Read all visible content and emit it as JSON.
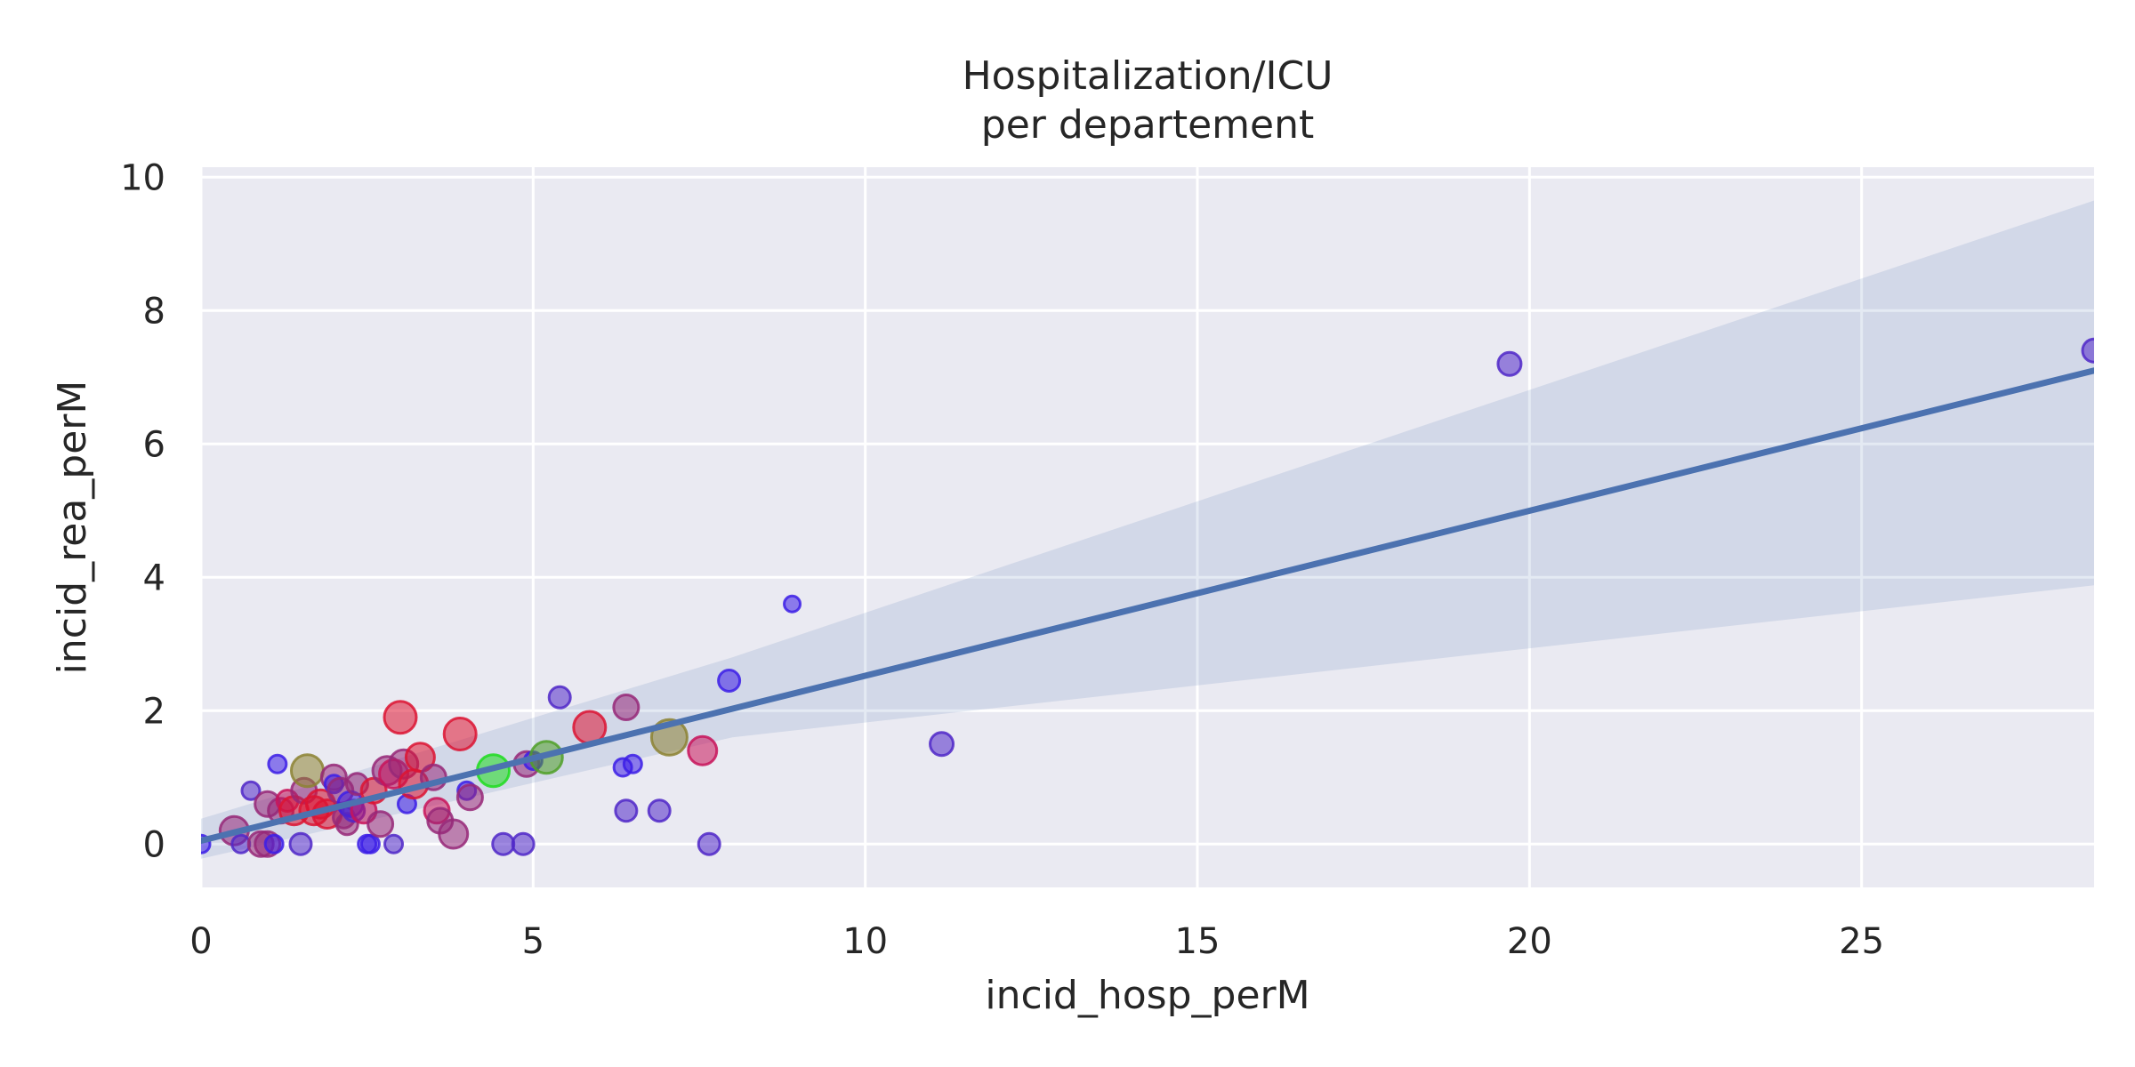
{
  "chart_data": {
    "type": "scatter",
    "title_lines": [
      "Hospitalization/ICU",
      "per departement"
    ],
    "xlabel": "incid_hosp_perM",
    "ylabel": "incid_rea_perM",
    "xlim": [
      0,
      28.5
    ],
    "ylim": [
      -0.65,
      10.15
    ],
    "xticks": [
      0,
      5,
      10,
      15,
      20,
      25
    ],
    "yticks": [
      0,
      2,
      4,
      6,
      8,
      10
    ],
    "grid": true,
    "legend": "none",
    "background_color": "#eaeaf2",
    "grid_color": "#ffffff",
    "regression": {
      "x": [
        0,
        28.5
      ],
      "y": [
        0.05,
        7.1
      ],
      "color": "#4c72b0",
      "ci_upper": [
        [
          0,
          0.38
        ],
        [
          8,
          2.8
        ],
        [
          28.5,
          9.65
        ]
      ],
      "ci_lower": [
        [
          0,
          -0.22
        ],
        [
          8,
          1.6
        ],
        [
          28.5,
          3.88
        ]
      ],
      "ci_color": "#4c72b0"
    },
    "points": [
      {
        "x": 0.0,
        "y": 0.0,
        "size": 10,
        "color": "#3c1ee6"
      },
      {
        "x": 0.5,
        "y": 0.2,
        "size": 16,
        "color": "#962878"
      },
      {
        "x": 0.6,
        "y": 0.0,
        "size": 10,
        "color": "#5028c8"
      },
      {
        "x": 0.75,
        "y": 0.8,
        "size": 10,
        "color": "#5028c8"
      },
      {
        "x": 0.9,
        "y": 0.0,
        "size": 14,
        "color": "#962878"
      },
      {
        "x": 1.0,
        "y": 0.0,
        "size": 14,
        "color": "#962878"
      },
      {
        "x": 1.0,
        "y": 0.6,
        "size": 14,
        "color": "#962878"
      },
      {
        "x": 1.1,
        "y": 0.0,
        "size": 10,
        "color": "#3c1ee6"
      },
      {
        "x": 1.15,
        "y": 1.2,
        "size": 10,
        "color": "#3c1ee6"
      },
      {
        "x": 1.2,
        "y": 0.5,
        "size": 14,
        "color": "#962878"
      },
      {
        "x": 1.3,
        "y": 0.65,
        "size": 12,
        "color": "#c8145a"
      },
      {
        "x": 1.4,
        "y": 0.5,
        "size": 16,
        "color": "#dc1432"
      },
      {
        "x": 1.5,
        "y": 0.0,
        "size": 12,
        "color": "#5028c8"
      },
      {
        "x": 1.55,
        "y": 0.8,
        "size": 14,
        "color": "#962878"
      },
      {
        "x": 1.6,
        "y": 1.1,
        "size": 18,
        "color": "#8c8232"
      },
      {
        "x": 1.7,
        "y": 0.5,
        "size": 16,
        "color": "#dc1432"
      },
      {
        "x": 1.8,
        "y": 0.6,
        "size": 16,
        "color": "#dc1432"
      },
      {
        "x": 1.9,
        "y": 0.45,
        "size": 16,
        "color": "#dc1432"
      },
      {
        "x": 2.0,
        "y": 1.0,
        "size": 14,
        "color": "#962878"
      },
      {
        "x": 2.0,
        "y": 0.9,
        "size": 10,
        "color": "#3c1ee6"
      },
      {
        "x": 2.1,
        "y": 0.8,
        "size": 14,
        "color": "#962878"
      },
      {
        "x": 2.15,
        "y": 0.4,
        "size": 12,
        "color": "#962878"
      },
      {
        "x": 2.2,
        "y": 0.3,
        "size": 12,
        "color": "#962878"
      },
      {
        "x": 2.25,
        "y": 0.6,
        "size": 14,
        "color": "#3c1ee6"
      },
      {
        "x": 2.3,
        "y": 0.5,
        "size": 12,
        "color": "#5028c8"
      },
      {
        "x": 2.35,
        "y": 0.9,
        "size": 12,
        "color": "#962878"
      },
      {
        "x": 2.45,
        "y": 0.5,
        "size": 14,
        "color": "#c8145a"
      },
      {
        "x": 2.5,
        "y": 0.0,
        "size": 10,
        "color": "#3c1ee6"
      },
      {
        "x": 2.55,
        "y": 0.0,
        "size": 10,
        "color": "#3c1ee6"
      },
      {
        "x": 2.6,
        "y": 0.8,
        "size": 14,
        "color": "#dc1432"
      },
      {
        "x": 2.7,
        "y": 0.3,
        "size": 14,
        "color": "#962878"
      },
      {
        "x": 2.8,
        "y": 1.1,
        "size": 16,
        "color": "#962878"
      },
      {
        "x": 2.9,
        "y": 1.05,
        "size": 16,
        "color": "#c8145a"
      },
      {
        "x": 2.9,
        "y": 0.0,
        "size": 10,
        "color": "#5028c8"
      },
      {
        "x": 3.0,
        "y": 1.9,
        "size": 18,
        "color": "#dc1432"
      },
      {
        "x": 3.05,
        "y": 1.2,
        "size": 16,
        "color": "#962878"
      },
      {
        "x": 3.1,
        "y": 0.6,
        "size": 10,
        "color": "#3c1ee6"
      },
      {
        "x": 3.2,
        "y": 0.9,
        "size": 16,
        "color": "#dc1432"
      },
      {
        "x": 3.3,
        "y": 1.3,
        "size": 16,
        "color": "#dc1432"
      },
      {
        "x": 3.5,
        "y": 1.0,
        "size": 14,
        "color": "#962878"
      },
      {
        "x": 3.55,
        "y": 0.5,
        "size": 14,
        "color": "#c8145a"
      },
      {
        "x": 3.6,
        "y": 0.35,
        "size": 14,
        "color": "#962878"
      },
      {
        "x": 3.8,
        "y": 0.15,
        "size": 16,
        "color": "#962878"
      },
      {
        "x": 3.9,
        "y": 1.65,
        "size": 18,
        "color": "#dc1432"
      },
      {
        "x": 4.0,
        "y": 0.8,
        "size": 10,
        "color": "#3c1ee6"
      },
      {
        "x": 4.05,
        "y": 0.7,
        "size": 14,
        "color": "#962878"
      },
      {
        "x": 4.4,
        "y": 1.1,
        "size": 18,
        "color": "#1edc1e"
      },
      {
        "x": 4.55,
        "y": 0.0,
        "size": 12,
        "color": "#5028c8"
      },
      {
        "x": 4.85,
        "y": 0.0,
        "size": 12,
        "color": "#5028c8"
      },
      {
        "x": 4.9,
        "y": 1.2,
        "size": 14,
        "color": "#962878"
      },
      {
        "x": 5.0,
        "y": 1.25,
        "size": 10,
        "color": "#3c1ee6"
      },
      {
        "x": 5.2,
        "y": 1.3,
        "size": 18,
        "color": "#50a028"
      },
      {
        "x": 5.4,
        "y": 2.2,
        "size": 12,
        "color": "#5028c8"
      },
      {
        "x": 5.85,
        "y": 1.75,
        "size": 18,
        "color": "#dc1432"
      },
      {
        "x": 6.35,
        "y": 1.15,
        "size": 10,
        "color": "#3c1ee6"
      },
      {
        "x": 6.4,
        "y": 0.5,
        "size": 12,
        "color": "#5028c8"
      },
      {
        "x": 6.4,
        "y": 2.05,
        "size": 14,
        "color": "#962878"
      },
      {
        "x": 6.5,
        "y": 1.2,
        "size": 10,
        "color": "#3c1ee6"
      },
      {
        "x": 6.9,
        "y": 0.5,
        "size": 12,
        "color": "#5028c8"
      },
      {
        "x": 7.05,
        "y": 1.6,
        "size": 20,
        "color": "#8c8232"
      },
      {
        "x": 7.55,
        "y": 1.4,
        "size": 16,
        "color": "#c8145a"
      },
      {
        "x": 7.65,
        "y": 0.0,
        "size": 12,
        "color": "#5028c8"
      },
      {
        "x": 7.95,
        "y": 2.45,
        "size": 12,
        "color": "#3c1ee6"
      },
      {
        "x": 8.9,
        "y": 3.6,
        "size": 9,
        "color": "#3c1ee6"
      },
      {
        "x": 11.15,
        "y": 1.5,
        "size": 13,
        "color": "#5028c8"
      },
      {
        "x": 19.7,
        "y": 7.2,
        "size": 13,
        "color": "#5028c8"
      },
      {
        "x": 28.5,
        "y": 7.4,
        "size": 13,
        "color": "#5028c8"
      }
    ]
  }
}
